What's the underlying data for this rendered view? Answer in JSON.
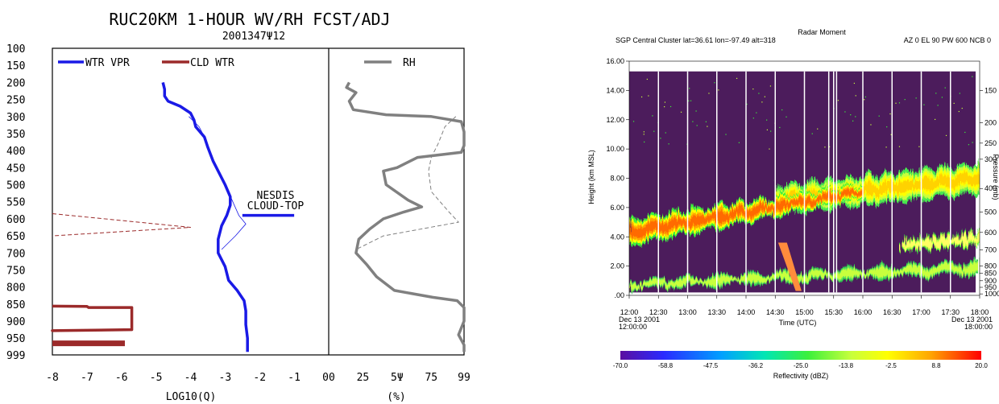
{
  "chart_data": [
    {
      "type": "line",
      "title": "RUC20KM 1-HOUR WV/RH FCST/ADJ",
      "subtitle": "2001347Ψ12",
      "panels": [
        {
          "xlabel": "LOG10(Q)",
          "xlim": [
            -8,
            0
          ],
          "x_ticks": [
            "-8",
            "-7",
            "-6",
            "-5",
            "-4",
            "-3",
            "-2",
            "-1",
            "00"
          ],
          "legend": [
            "WTR VPR",
            "CLD WTR"
          ],
          "series": [
            {
              "name": "WTR VPR",
              "color": "#1a1ae6",
              "points": [
                [
                  -4.8,
                  200
                ],
                [
                  -4.75,
                  220
                ],
                [
                  -4.75,
                  240
                ],
                [
                  -4.65,
                  255
                ],
                [
                  -4.3,
                  270
                ],
                [
                  -4.0,
                  290
                ],
                [
                  -3.9,
                  310
                ],
                [
                  -3.85,
                  330
                ],
                [
                  -3.6,
                  360
                ],
                [
                  -3.5,
                  390
                ],
                [
                  -3.35,
                  430
                ],
                [
                  -3.2,
                  460
                ],
                [
                  -3.0,
                  500
                ],
                [
                  -2.85,
                  535
                ],
                [
                  -2.85,
                  560
                ],
                [
                  -2.95,
                  590
                ],
                [
                  -3.1,
                  620
                ],
                [
                  -3.2,
                  660
                ],
                [
                  -3.2,
                  700
                ],
                [
                  -3.0,
                  740
                ],
                [
                  -2.9,
                  780
                ],
                [
                  -2.65,
                  810
                ],
                [
                  -2.45,
                  840
                ],
                [
                  -2.4,
                  870
                ],
                [
                  -2.4,
                  910
                ],
                [
                  -2.35,
                  950
                ],
                [
                  -2.35,
                  990
                ]
              ]
            },
            {
              "name": "WTR VPR adjusted",
              "color": "#1a1ae6",
              "style": "thin",
              "points": [
                [
                  -4.05,
                  300
                ],
                [
                  -3.75,
                  330
                ],
                [
                  -3.6,
                  360
                ],
                [
                  -3.35,
                  430
                ],
                [
                  -3.0,
                  500
                ],
                [
                  -2.8,
                  545
                ],
                [
                  -2.6,
                  590
                ],
                [
                  -2.4,
                  615
                ],
                [
                  -2.7,
                  650
                ],
                [
                  -3.1,
                  690
                ]
              ]
            },
            {
              "name": "CLD WTR",
              "color": "#9b2a2a",
              "style": "dashed",
              "points": [
                [
                  -8,
                  585
                ],
                [
                  -4,
                  625
                ],
                [
                  -8,
                  650
                ]
              ]
            },
            {
              "name": "CLD WTR outline",
              "color": "#9b2a2a",
              "style": "thick",
              "points": [
                [
                  -8,
                  856
                ],
                [
                  -7.0,
                  857
                ],
                [
                  -6.95,
                  860
                ],
                [
                  -5.7,
                  860
                ],
                [
                  -5.7,
                  925
                ],
                [
                  -8,
                  928
                ],
                [
                  -8,
                  925
                ]
              ]
            },
            {
              "name": "CLD WTR bar",
              "color": "#9b2a2a",
              "style": "heavy",
              "points": [
                [
                  -8,
                  965
                ],
                [
                  -5.9,
                  965
                ]
              ]
            }
          ],
          "annotation": {
            "lines": [
              "NESDIS",
              "CLOUD-TOP"
            ],
            "p": 590,
            "x_range": [
              -2.5,
              -1.0
            ]
          }
        },
        {
          "xlabel": "(%)",
          "xlim": [
            0,
            99
          ],
          "x_ticks": [
            "25",
            "5Ψ",
            "75",
            "99"
          ],
          "legend": [
            "RH"
          ],
          "series": [
            {
              "name": "RH",
              "color": "#808080",
              "points": [
                [
                  15,
                  200
                ],
                [
                  13,
                  215
                ],
                [
                  20,
                  230
                ],
                [
                  15,
                  255
                ],
                [
                  18,
                  280
                ],
                [
                  42,
                  295
                ],
                [
                  75,
                  300
                ],
                [
                  97,
                  315
                ],
                [
                  99,
                  345
                ],
                [
                  99,
                  385
                ],
                [
                  97,
                  405
                ],
                [
                  65,
                  420
                ],
                [
                  50,
                  450
                ],
                [
                  40,
                  460
                ],
                [
                  42,
                  500
                ],
                [
                  58,
                  545
                ],
                [
                  68,
                  565
                ],
                [
                  55,
                  580
                ],
                [
                  40,
                  600
                ],
                [
                  30,
                  630
                ],
                [
                  22,
                  660
                ],
                [
                  20,
                  700
                ],
                [
                  28,
                  735
                ],
                [
                  35,
                  770
                ],
                [
                  48,
                  810
                ],
                [
                  76,
                  830
                ],
                [
                  94,
                  840
                ],
                [
                  99,
                  860
                ],
                [
                  99,
                  900
                ],
                [
                  95,
                  940
                ],
                [
                  99,
                  970
                ],
                [
                  99,
                  990
                ]
              ]
            },
            {
              "name": "RH adjusted",
              "color": "#808080",
              "style": "dashed",
              "points": [
                [
                  93,
                  300
                ],
                [
                  85,
                  330
                ],
                [
                  80,
                  380
                ],
                [
                  75,
                  420
                ],
                [
                  73,
                  460
                ],
                [
                  75,
                  520
                ],
                [
                  88,
                  580
                ],
                [
                  95,
                  610
                ],
                [
                  40,
                  650
                ],
                [
                  20,
                  690
                ]
              ]
            }
          ]
        }
      ],
      "y_ticks": [
        "100",
        "150",
        "200",
        "250",
        "300",
        "350",
        "400",
        "450",
        "500",
        "550",
        "600",
        "650",
        "700",
        "750",
        "800",
        "850",
        "900",
        "950",
        "999"
      ],
      "ylim": [
        100,
        999
      ],
      "grid": false
    },
    {
      "type": "heatmap",
      "title": "Radar Moment",
      "subtitle_left": "SGP Central Cluster lat=36.61 lon=-97.49 alt=318",
      "subtitle_right": "AZ 0 EL 90 PW 600 NCB 0",
      "ylabel": "Height (km MSL)",
      "ylabel_right": "Pressure (mb)",
      "xlabel": "Time (UTC)",
      "y_ticks": [
        "16.00",
        "14.00",
        "12.00",
        "10.00",
        "8.00",
        "6.00",
        "4.00",
        "2.00",
        ".00"
      ],
      "ylim": [
        0,
        16
      ],
      "x_ticks": [
        "12:00",
        "12:30",
        "13:00",
        "13:30",
        "14:00",
        "14:30",
        "15:00",
        "15:30",
        "16:00",
        "16:30",
        "17:00",
        "17:30",
        "18:00"
      ],
      "x_ticks_shown": [
        "12:00",
        "12:30",
        "13:00",
        "13:30",
        "14:00",
        "14:30",
        "15:00",
        "15:30",
        "16:00",
        "16:30",
        "17:00",
        "17:30",
        "18:00"
      ],
      "start_label": [
        "Dec 13 2001",
        "12:00:00"
      ],
      "end_label": [
        "Dec 13 2001",
        "18:00:00"
      ],
      "pressure_ticks": [
        "150",
        "200",
        "250",
        "300",
        "400",
        "500",
        "600",
        "700",
        "800",
        "850",
        "900",
        "950",
        "1000"
      ],
      "pressure_heights": [
        14.0,
        11.8,
        10.4,
        9.3,
        7.3,
        5.7,
        4.3,
        3.1,
        2.0,
        1.5,
        1.0,
        0.55,
        0.1
      ],
      "data_gaps_utc": [
        "12:30",
        "13:00",
        "13:30",
        "14:00",
        "14:30",
        "15:00",
        "15:25",
        "15:30",
        "15:33",
        "16:00",
        "16:30",
        "17:00",
        "17:30"
      ],
      "colorbar": {
        "label": "Reflectivity (dBZ)",
        "ticks": [
          "-70.0",
          "-58.8",
          "-47.5",
          "-36.2",
          "-25.0",
          "-13.8",
          "-2.5",
          "8.8",
          "20.0"
        ],
        "colors": [
          "#5a0fa0",
          "#3c3cff",
          "#00b4ff",
          "#00e6a0",
          "#3cf03c",
          "#c8ff3c",
          "#ffff00",
          "#ffa500",
          "#ff3c00",
          "#ff0000"
        ]
      },
      "background_color": "#4c1c5c",
      "layers": [
        {
          "name": "main cloud layer",
          "start": "12:00",
          "end": "16:00",
          "base_km": [
            3.4,
            6.6
          ],
          "top_km": [
            5.2,
            7.6
          ],
          "max_dbz": 0
        },
        {
          "name": "upper cloud layer",
          "start": "14:30",
          "end": "18:00",
          "base_km": [
            5.5,
            7.0
          ],
          "top_km": [
            7.5,
            9.0
          ],
          "max_dbz": -13
        },
        {
          "name": "low cloud layer",
          "start": "12:00",
          "end": "18:00",
          "base_km": [
            0.4,
            1.5
          ],
          "top_km": [
            1.0,
            2.3
          ],
          "max_dbz": -13
        },
        {
          "name": "mid layer",
          "start": "16:40",
          "end": "18:00",
          "base_km": [
            3.0,
            3.5
          ],
          "top_km": [
            3.8,
            4.3
          ],
          "max_dbz": -25
        }
      ]
    }
  ]
}
